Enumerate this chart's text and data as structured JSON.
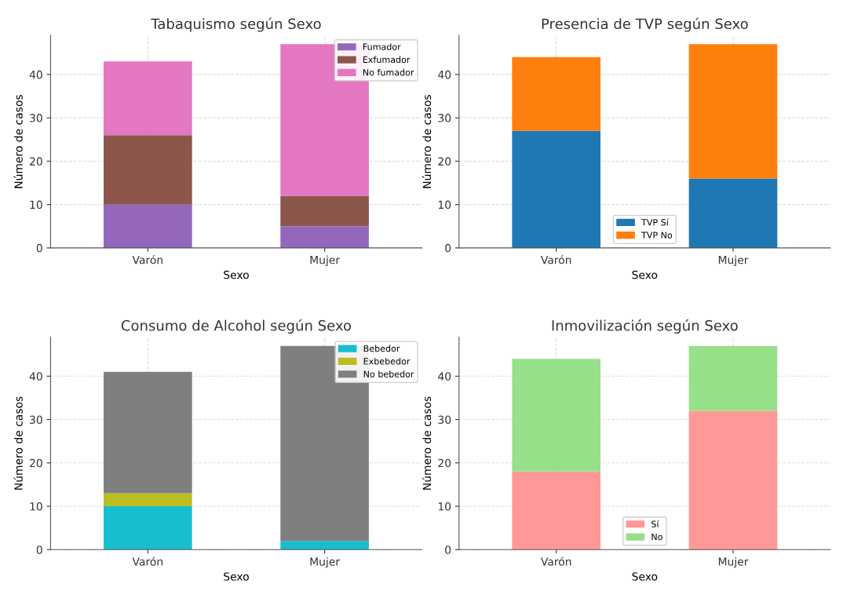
{
  "chart_data": [
    {
      "type": "bar",
      "stacked": true,
      "title": "Tabaquismo según Sexo",
      "xlabel": "Sexo",
      "ylabel": "Número de casos",
      "categories": [
        "Varón",
        "Mujer"
      ],
      "ylim": [
        0,
        49
      ],
      "yticks": [
        0,
        10,
        20,
        30,
        40
      ],
      "grid": true,
      "legend": "top right",
      "series": [
        {
          "name": "Fumador",
          "color": "#9467bd",
          "values": [
            10,
            5
          ]
        },
        {
          "name": "Exfumador",
          "color": "#8c564b",
          "values": [
            16,
            7
          ]
        },
        {
          "name": "No fumador",
          "color": "#e377c2",
          "values": [
            17,
            35
          ]
        }
      ]
    },
    {
      "type": "bar",
      "stacked": true,
      "title": "Presencia de TVP según Sexo",
      "xlabel": "Sexo",
      "ylabel": "Número de casos",
      "categories": [
        "Varón",
        "Mujer"
      ],
      "ylim": [
        0,
        49
      ],
      "yticks": [
        0,
        10,
        20,
        30,
        40
      ],
      "grid": true,
      "legend": "bottom",
      "series": [
        {
          "name": "TVP Sí",
          "color": "#1f77b4",
          "values": [
            27,
            16
          ]
        },
        {
          "name": "TVP No",
          "color": "#ff7f0e",
          "values": [
            17,
            31
          ]
        }
      ]
    },
    {
      "type": "bar",
      "stacked": true,
      "title": "Consumo de Alcohol según Sexo",
      "xlabel": "Sexo",
      "ylabel": "Número de casos",
      "categories": [
        "Varón",
        "Mujer"
      ],
      "ylim": [
        0,
        49
      ],
      "yticks": [
        0,
        10,
        20,
        30,
        40
      ],
      "grid": true,
      "legend": "top right",
      "series": [
        {
          "name": "Bebedor",
          "color": "#17becf",
          "values": [
            10,
            2
          ]
        },
        {
          "name": "Exbebedor",
          "color": "#bcbd22",
          "values": [
            3,
            0
          ]
        },
        {
          "name": "No bebedor",
          "color": "#7f7f7f",
          "values": [
            28,
            45
          ]
        }
      ]
    },
    {
      "type": "bar",
      "stacked": true,
      "title": "Inmovilización según Sexo",
      "xlabel": "Sexo",
      "ylabel": "Número de casos",
      "categories": [
        "Varón",
        "Mujer"
      ],
      "ylim": [
        0,
        49
      ],
      "yticks": [
        0,
        10,
        20,
        30,
        40
      ],
      "grid": true,
      "legend": "bottom",
      "series": [
        {
          "name": "Sí",
          "color": "#ff9896",
          "values": [
            18,
            32
          ]
        },
        {
          "name": "No",
          "color": "#98df8a",
          "values": [
            26,
            15
          ]
        }
      ]
    }
  ]
}
